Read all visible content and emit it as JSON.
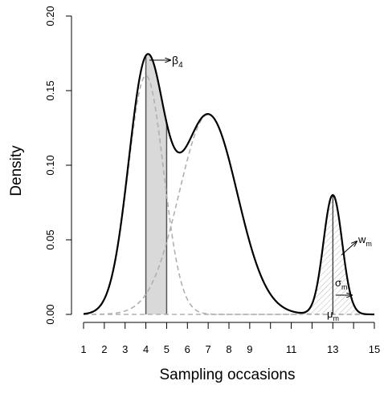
{
  "chart_data": {
    "type": "line",
    "xlabel": "Sampling occasions",
    "ylabel": "Density",
    "xlim": [
      1,
      15
    ],
    "ylim": [
      0,
      0.2
    ],
    "x_ticks": [
      1,
      2,
      3,
      4,
      5,
      6,
      7,
      8,
      9,
      10,
      11,
      12,
      13,
      14,
      15
    ],
    "x_tick_labels": [
      "1",
      "2",
      "3",
      "4",
      "5",
      "6",
      "7",
      "8",
      "9",
      "",
      "11",
      "",
      "13",
      "",
      "15"
    ],
    "y_ticks": [
      0,
      0.05,
      0.1,
      0.15,
      0.2
    ],
    "y_tick_labels": [
      "0.00",
      "0.05",
      "0.10",
      "0.15",
      "0.20"
    ],
    "components": [
      {
        "mean": 4.0,
        "sd": 0.85,
        "peak_density": 0.16
      },
      {
        "mean": 7.0,
        "sd": 1.4,
        "peak_density": 0.134
      },
      {
        "mean": 13.0,
        "sd": 0.45,
        "peak_density": 0.08
      }
    ],
    "shaded_interval": {
      "from": 4,
      "to": 5
    },
    "hatched_component_mean": 13,
    "annotations": {
      "beta": {
        "base": "β",
        "sub": "4"
      },
      "w": {
        "base": "w",
        "sub": "m"
      },
      "sigma": {
        "base": "σ",
        "sub": "m"
      },
      "mu": {
        "base": "μ",
        "sub": "m"
      }
    },
    "colors": {
      "mixture": "#000000",
      "components": "#b0b0b0",
      "shade": "#d9d9d9",
      "hatch": "#b8b8b8"
    }
  }
}
